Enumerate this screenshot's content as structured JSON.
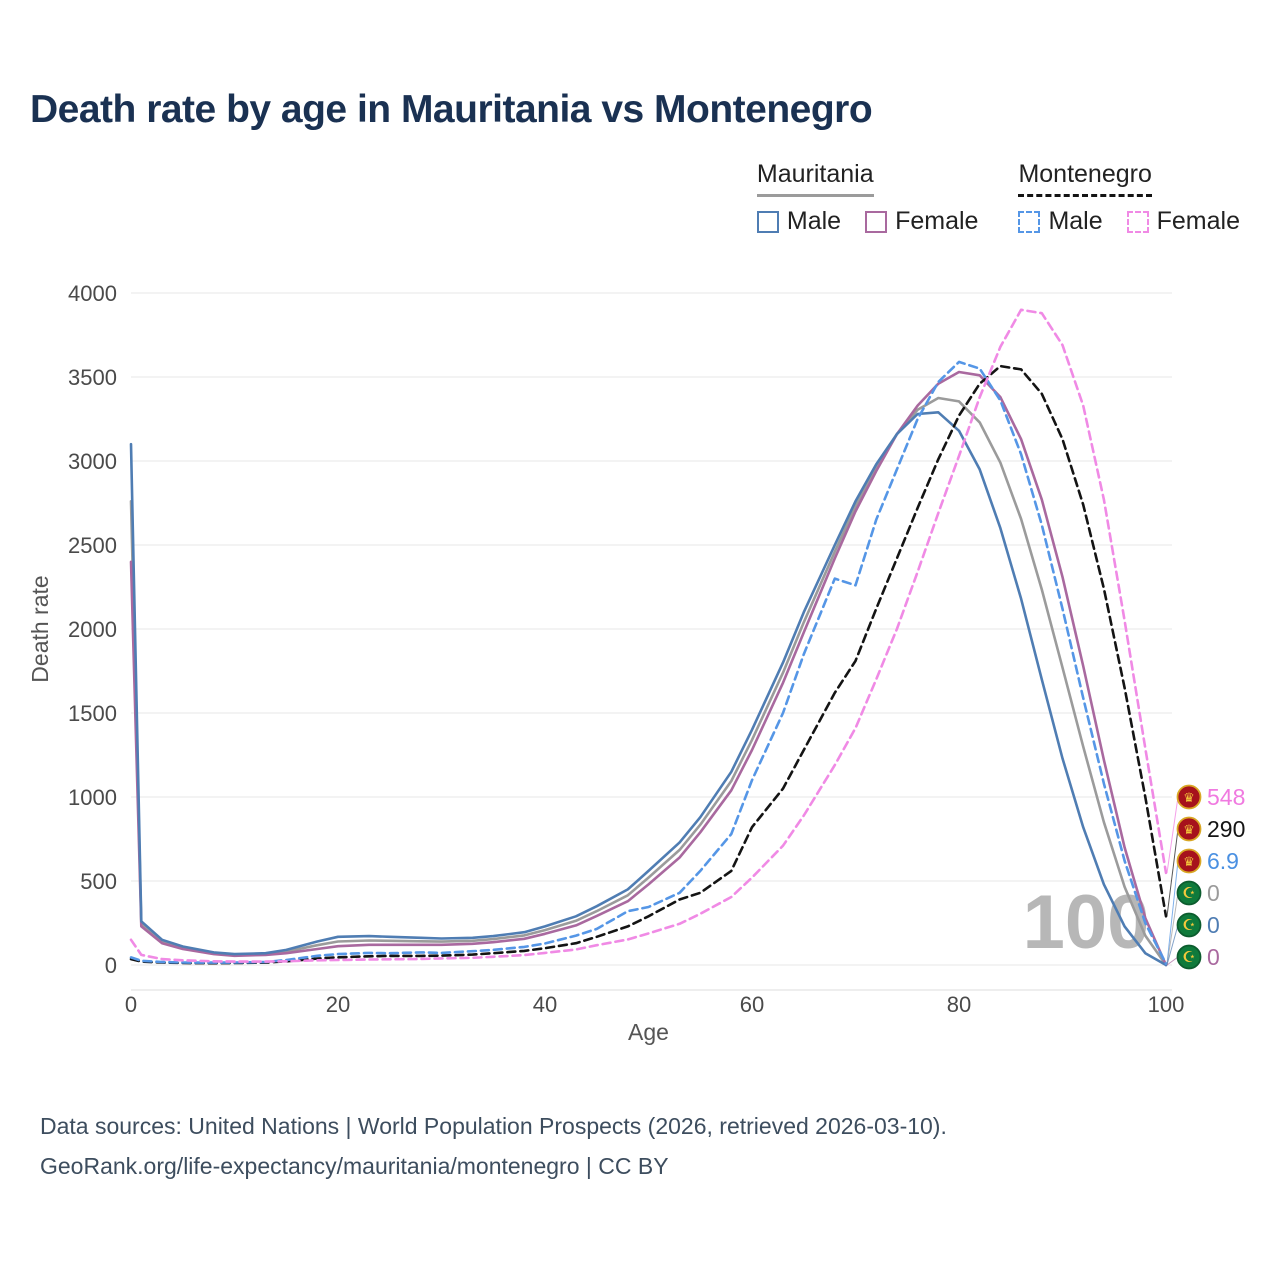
{
  "title": "Death rate by age in Mauritania vs Montenegro",
  "watermark": "100",
  "legend": {
    "mauritania": {
      "label": "Mauritania",
      "male": "Male",
      "female": "Female"
    },
    "montenegro": {
      "label": "Montenegro",
      "male": "Male",
      "female": "Female"
    }
  },
  "footer": {
    "line1": "Data sources: United Nations | World Population Prospects (2026, retrieved 2026-03-10).",
    "line2": "GeoRank.org/life-expectancy/mauritania/montenegro | CC BY"
  },
  "chart_data": {
    "type": "line",
    "title": "Death rate by age in Mauritania vs Montenegro",
    "xlabel": "Age",
    "ylabel": "Death rate",
    "xlim": [
      0,
      100
    ],
    "ylim": [
      0,
      4000
    ],
    "x_ticks": [
      0,
      20,
      40,
      60,
      80,
      100
    ],
    "y_ticks": [
      0,
      500,
      1000,
      1500,
      2000,
      2500,
      3000,
      3500,
      4000
    ],
    "grid": true,
    "legend_position": "top-right",
    "x": [
      0,
      1,
      3,
      5,
      8,
      10,
      13,
      15,
      18,
      20,
      23,
      25,
      28,
      30,
      33,
      35,
      38,
      40,
      43,
      45,
      48,
      50,
      53,
      55,
      58,
      60,
      63,
      65,
      68,
      70,
      72,
      74,
      76,
      78,
      80,
      82,
      84,
      86,
      88,
      90,
      92,
      94,
      96,
      98,
      100
    ],
    "series": [
      {
        "id": "mauritania-both",
        "name": "Mauritania (both sexes)",
        "color": "#9b9b9b",
        "dash": false,
        "values": [
          2760,
          246,
          140,
          102,
          70,
          60,
          65,
          80,
          118,
          140,
          146,
          144,
          141,
          139,
          144,
          154,
          176,
          208,
          263,
          321,
          415,
          520,
          685,
          835,
          1095,
          1340,
          1740,
          2040,
          2460,
          2730,
          2960,
          3160,
          3305,
          3375,
          3355,
          3230,
          2990,
          2655,
          2235,
          1770,
          1300,
          850,
          465,
          175,
          0
        ]
      },
      {
        "id": "mauritania-female",
        "name": "Mauritania Female",
        "color": "#a9699f",
        "dash": false,
        "values": [
          2400,
          230,
          130,
          95,
          65,
          55,
          60,
          70,
          95,
          112,
          120,
          120,
          120,
          120,
          126,
          136,
          156,
          186,
          236,
          292,
          380,
          480,
          640,
          790,
          1040,
          1280,
          1680,
          1980,
          2420,
          2700,
          2940,
          3160,
          3330,
          3460,
          3530,
          3510,
          3380,
          3130,
          2770,
          2310,
          1780,
          1220,
          700,
          280,
          0
        ]
      },
      {
        "id": "mauritania-male",
        "name": "Mauritania Male",
        "color": "#4f7db3",
        "dash": false,
        "values": [
          3100,
          260,
          150,
          110,
          75,
          65,
          70,
          90,
          140,
          168,
          172,
          168,
          162,
          158,
          162,
          172,
          195,
          230,
          290,
          350,
          450,
          560,
          730,
          880,
          1150,
          1400,
          1800,
          2100,
          2500,
          2760,
          2980,
          3160,
          3280,
          3290,
          3180,
          2950,
          2600,
          2180,
          1700,
          1230,
          820,
          480,
          230,
          70,
          0
        ]
      },
      {
        "id": "montenegro-both",
        "name": "Montenegro (both sexes)",
        "color": "#141414",
        "dash": true,
        "values": [
          35,
          20,
          15,
          12,
          11,
          12,
          14,
          22,
          38,
          46,
          52,
          54,
          54,
          56,
          62,
          70,
          84,
          100,
          130,
          168,
          230,
          290,
          390,
          430,
          560,
          820,
          1050,
          1280,
          1620,
          1810,
          2120,
          2420,
          2720,
          3010,
          3270,
          3460,
          3565,
          3545,
          3400,
          3130,
          2740,
          2240,
          1650,
          1000,
          290
        ]
      },
      {
        "id": "montenegro-male",
        "name": "Montenegro Male",
        "color": "#5596e6",
        "dash": true,
        "values": [
          45,
          25,
          18,
          15,
          14,
          15,
          18,
          30,
          55,
          65,
          72,
          70,
          75,
          72,
          82,
          90,
          108,
          128,
          175,
          215,
          320,
          345,
          430,
          560,
          780,
          1100,
          1500,
          1850,
          2300,
          2260,
          2650,
          2950,
          3250,
          3470,
          3590,
          3550,
          3360,
          3040,
          2620,
          2120,
          1590,
          1080,
          620,
          250,
          6.9
        ]
      },
      {
        "id": "montenegro-female",
        "name": "Montenegro Female",
        "color": "#f08ae5",
        "dash": true,
        "values": [
          150,
          60,
          35,
          28,
          22,
          20,
          20,
          22,
          28,
          30,
          33,
          34,
          36,
          39,
          43,
          49,
          59,
          72,
          92,
          118,
          152,
          188,
          245,
          305,
          405,
          520,
          710,
          890,
          1190,
          1410,
          1700,
          2000,
          2340,
          2690,
          3030,
          3380,
          3680,
          3900,
          3880,
          3690,
          3330,
          2770,
          2050,
          1290,
          548
        ]
      }
    ],
    "end_labels": [
      {
        "id": "montenegro-female",
        "value": "548",
        "end_value": 548,
        "color": "#f07ae0",
        "flag": "montenegro"
      },
      {
        "id": "montenegro-both",
        "value": "290",
        "end_value": 290,
        "color": "#141414",
        "flag": "montenegro"
      },
      {
        "id": "montenegro-male",
        "value": "6.9",
        "end_value": 6.9,
        "color": "#4a90e2",
        "flag": "montenegro"
      },
      {
        "id": "mauritania-both",
        "value": "0",
        "end_value": 0,
        "color": "#9b9b9b",
        "flag": "mauritania"
      },
      {
        "id": "mauritania-male",
        "value": "0",
        "end_value": 0,
        "color": "#4f7db3",
        "flag": "mauritania"
      },
      {
        "id": "mauritania-female",
        "value": "0",
        "end_value": 0,
        "color": "#a9699f",
        "flag": "mauritania"
      }
    ],
    "flag_colors": {
      "montenegro": {
        "fill": "#a6121c",
        "ring": "#d9a724",
        "emblem": "#f4c93c"
      },
      "mauritania": {
        "fill": "#0f7a3b",
        "ring": "#0c5c2e",
        "emblem": "#f4c93c"
      }
    }
  }
}
